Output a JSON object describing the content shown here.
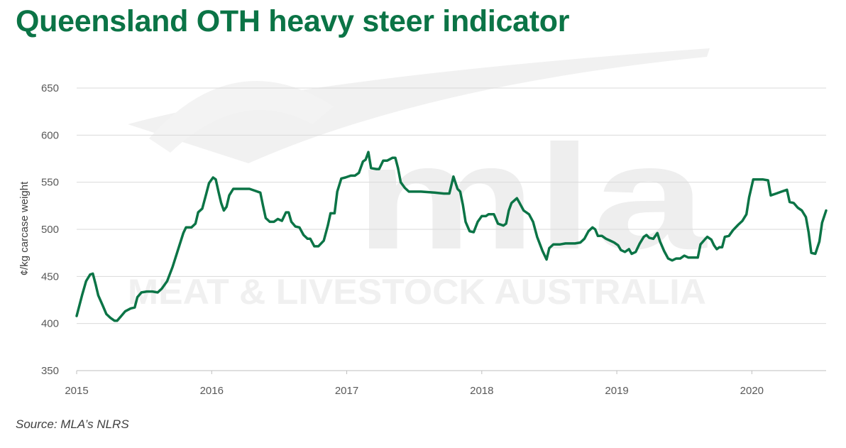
{
  "title": "Queensland OTH heavy steer indicator",
  "source": "Source: MLA’s NLRS",
  "watermark": {
    "logo": "mla",
    "text": "MEAT & LIVESTOCK AUSTRALIA"
  },
  "colors": {
    "title": "#0b7446",
    "line": "#0b7446",
    "grid": "#d9d9d9",
    "axis": "#bfbfbf"
  },
  "chart_data": {
    "type": "line",
    "title": "Queensland OTH heavy steer indicator",
    "xlabel": "",
    "ylabel": "¢/kg carcase weight",
    "xlim": [
      2015,
      2020.55
    ],
    "ylim": [
      350,
      650
    ],
    "yticks": [
      350,
      400,
      450,
      500,
      550,
      600,
      650
    ],
    "xticks": [
      2015,
      2016,
      2017,
      2018,
      2019,
      2020
    ],
    "grid": "horizontal",
    "series": [
      {
        "name": "",
        "color": "#0b7446",
        "points": [
          [
            2015.0,
            408
          ],
          [
            2015.04,
            430
          ],
          [
            2015.07,
            445
          ],
          [
            2015.1,
            452
          ],
          [
            2015.12,
            453
          ],
          [
            2015.14,
            442
          ],
          [
            2015.16,
            430
          ],
          [
            2015.19,
            420
          ],
          [
            2015.22,
            410
          ],
          [
            2015.25,
            406
          ],
          [
            2015.28,
            403
          ],
          [
            2015.3,
            403
          ],
          [
            2015.33,
            408
          ],
          [
            2015.36,
            413
          ],
          [
            2015.4,
            416
          ],
          [
            2015.43,
            417
          ],
          [
            2015.45,
            428
          ],
          [
            2015.48,
            433
          ],
          [
            2015.52,
            434
          ],
          [
            2015.56,
            434
          ],
          [
            2015.6,
            433
          ],
          [
            2015.63,
            437
          ],
          [
            2015.67,
            445
          ],
          [
            2015.71,
            460
          ],
          [
            2015.75,
            478
          ],
          [
            2015.79,
            496
          ],
          [
            2015.81,
            502
          ],
          [
            2015.85,
            502
          ],
          [
            2015.88,
            506
          ],
          [
            2015.9,
            518
          ],
          [
            2015.93,
            522
          ],
          [
            2015.96,
            538
          ],
          [
            2015.98,
            549
          ],
          [
            2016.01,
            555
          ],
          [
            2016.03,
            553
          ],
          [
            2016.05,
            540
          ],
          [
            2016.07,
            528
          ],
          [
            2016.09,
            520
          ],
          [
            2016.11,
            524
          ],
          [
            2016.13,
            536
          ],
          [
            2016.16,
            543
          ],
          [
            2016.2,
            543
          ],
          [
            2016.24,
            543
          ],
          [
            2016.28,
            543
          ],
          [
            2016.32,
            541
          ],
          [
            2016.36,
            539
          ],
          [
            2016.38,
            525
          ],
          [
            2016.4,
            512
          ],
          [
            2016.43,
            508
          ],
          [
            2016.46,
            508
          ],
          [
            2016.49,
            511
          ],
          [
            2016.52,
            509
          ],
          [
            2016.55,
            518
          ],
          [
            2016.57,
            518
          ],
          [
            2016.59,
            508
          ],
          [
            2016.62,
            503
          ],
          [
            2016.65,
            502
          ],
          [
            2016.68,
            494
          ],
          [
            2016.71,
            490
          ],
          [
            2016.73,
            490
          ],
          [
            2016.76,
            482
          ],
          [
            2016.79,
            482
          ],
          [
            2016.83,
            488
          ],
          [
            2016.86,
            504
          ],
          [
            2016.88,
            517
          ],
          [
            2016.91,
            517
          ],
          [
            2016.93,
            540
          ],
          [
            2016.96,
            554
          ],
          [
            2016.99,
            555
          ],
          [
            2017.03,
            557
          ],
          [
            2017.06,
            557
          ],
          [
            2017.09,
            560
          ],
          [
            2017.12,
            572
          ],
          [
            2017.14,
            574
          ],
          [
            2017.16,
            582
          ],
          [
            2017.18,
            565
          ],
          [
            2017.22,
            564
          ],
          [
            2017.24,
            564
          ],
          [
            2017.27,
            573
          ],
          [
            2017.3,
            573
          ],
          [
            2017.34,
            576
          ],
          [
            2017.36,
            576
          ],
          [
            2017.38,
            565
          ],
          [
            2017.4,
            550
          ],
          [
            2017.43,
            544
          ],
          [
            2017.46,
            540
          ],
          [
            2017.55,
            540
          ],
          [
            2017.65,
            539
          ],
          [
            2017.72,
            538
          ],
          [
            2017.76,
            538
          ],
          [
            2017.79,
            556
          ],
          [
            2017.82,
            543
          ],
          [
            2017.84,
            540
          ],
          [
            2017.86,
            526
          ],
          [
            2017.88,
            508
          ],
          [
            2017.91,
            498
          ],
          [
            2017.94,
            497
          ],
          [
            2017.97,
            508
          ],
          [
            2018.0,
            514
          ],
          [
            2018.03,
            514
          ],
          [
            2018.05,
            516
          ],
          [
            2018.09,
            516
          ],
          [
            2018.12,
            506
          ],
          [
            2018.16,
            504
          ],
          [
            2018.18,
            506
          ],
          [
            2018.2,
            520
          ],
          [
            2018.22,
            528
          ],
          [
            2018.26,
            533
          ],
          [
            2018.28,
            528
          ],
          [
            2018.31,
            520
          ],
          [
            2018.35,
            516
          ],
          [
            2018.38,
            508
          ],
          [
            2018.41,
            492
          ],
          [
            2018.45,
            477
          ],
          [
            2018.48,
            468
          ],
          [
            2018.5,
            480
          ],
          [
            2018.53,
            484
          ],
          [
            2018.58,
            484
          ],
          [
            2018.62,
            485
          ],
          [
            2018.69,
            485
          ],
          [
            2018.73,
            486
          ],
          [
            2018.76,
            490
          ],
          [
            2018.79,
            498
          ],
          [
            2018.82,
            502
          ],
          [
            2018.84,
            500
          ],
          [
            2018.86,
            493
          ],
          [
            2018.89,
            493
          ],
          [
            2018.92,
            490
          ],
          [
            2018.95,
            488
          ],
          [
            2018.98,
            486
          ],
          [
            2019.01,
            483
          ],
          [
            2019.03,
            478
          ],
          [
            2019.06,
            476
          ],
          [
            2019.09,
            479
          ],
          [
            2019.11,
            474
          ],
          [
            2019.14,
            476
          ],
          [
            2019.17,
            485
          ],
          [
            2019.2,
            492
          ],
          [
            2019.22,
            494
          ],
          [
            2019.24,
            491
          ],
          [
            2019.27,
            490
          ],
          [
            2019.3,
            496
          ],
          [
            2019.32,
            487
          ],
          [
            2019.35,
            477
          ],
          [
            2019.38,
            469
          ],
          [
            2019.41,
            467
          ],
          [
            2019.44,
            469
          ],
          [
            2019.47,
            469
          ],
          [
            2019.5,
            472
          ],
          [
            2019.53,
            470
          ],
          [
            2019.56,
            470
          ],
          [
            2019.6,
            470
          ],
          [
            2019.62,
            484
          ],
          [
            2019.65,
            489
          ],
          [
            2019.67,
            492
          ],
          [
            2019.7,
            489
          ],
          [
            2019.72,
            483
          ],
          [
            2019.74,
            479
          ],
          [
            2019.76,
            481
          ],
          [
            2019.78,
            481
          ],
          [
            2019.8,
            492
          ],
          [
            2019.83,
            493
          ],
          [
            2019.86,
            499
          ],
          [
            2019.9,
            505
          ],
          [
            2019.93,
            509
          ],
          [
            2019.96,
            516
          ],
          [
            2019.98,
            534
          ],
          [
            2020.01,
            553
          ],
          [
            2020.04,
            553
          ],
          [
            2020.08,
            553
          ],
          [
            2020.12,
            552
          ],
          [
            2020.14,
            536
          ],
          [
            2020.18,
            538
          ],
          [
            2020.22,
            540
          ],
          [
            2020.26,
            542
          ],
          [
            2020.28,
            529
          ],
          [
            2020.31,
            528
          ],
          [
            2020.34,
            523
          ],
          [
            2020.37,
            520
          ],
          [
            2020.4,
            513
          ],
          [
            2020.42,
            497
          ],
          [
            2020.44,
            475
          ],
          [
            2020.47,
            474
          ],
          [
            2020.5,
            487
          ],
          [
            2020.52,
            507
          ],
          [
            2020.55,
            520
          ]
        ]
      }
    ]
  }
}
